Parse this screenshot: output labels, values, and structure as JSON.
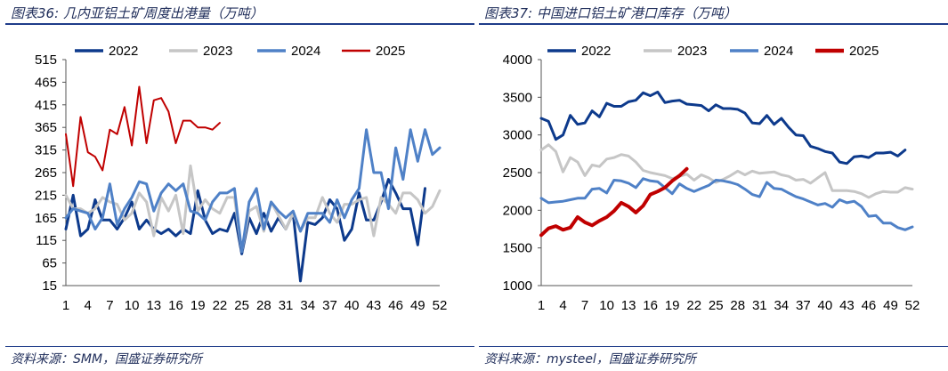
{
  "charts": [
    {
      "title": "图表36:  几内亚铝土矿周度出港量（万吨）",
      "source": "资料来源：SMM，国盛证券研究所"
    },
    {
      "title": "图表37:  中国进口铝土矿港口库存（万吨）",
      "source": "资料来源：mysteel，国盛证券研究所"
    }
  ],
  "chart_data": [
    {
      "type": "line",
      "title": "",
      "xlabel": "",
      "ylabel": "",
      "x": [
        1,
        2,
        3,
        4,
        5,
        6,
        7,
        8,
        9,
        10,
        11,
        12,
        13,
        14,
        15,
        16,
        17,
        18,
        19,
        20,
        21,
        22,
        23,
        24,
        25,
        26,
        27,
        28,
        29,
        30,
        31,
        32,
        33,
        34,
        35,
        36,
        37,
        38,
        39,
        40,
        41,
        42,
        43,
        44,
        45,
        46,
        47,
        48,
        49,
        50,
        51,
        52
      ],
      "xticks": [
        1,
        4,
        7,
        10,
        13,
        16,
        19,
        22,
        25,
        28,
        31,
        34,
        37,
        40,
        43,
        46,
        49,
        52
      ],
      "yticks": [
        15,
        65,
        115,
        165,
        215,
        265,
        315,
        365,
        415,
        465,
        515
      ],
      "ylim": [
        15,
        515
      ],
      "grid": false,
      "legend": "top",
      "series": [
        {
          "name": "2022",
          "color": "#0d3a8c",
          "width": 3,
          "values": [
            140,
            215,
            125,
            140,
            205,
            160,
            160,
            140,
            165,
            200,
            140,
            160,
            140,
            130,
            140,
            125,
            140,
            130,
            225,
            160,
            130,
            140,
            135,
            175,
            85,
            165,
            130,
            175,
            135,
            165,
            140,
            175,
            25,
            155,
            150,
            165,
            205,
            185,
            115,
            140,
            220,
            160,
            160,
            200,
            250,
            220,
            185,
            185,
            105,
            230,
            null,
            null
          ]
        },
        {
          "name": "2023",
          "color": "#c6c6c6",
          "width": 3,
          "values": [
            215,
            185,
            185,
            175,
            185,
            210,
            200,
            195,
            160,
            175,
            220,
            200,
            125,
            210,
            180,
            215,
            130,
            280,
            180,
            205,
            185,
            175,
            210,
            210,
            90,
            180,
            190,
            135,
            200,
            170,
            140,
            175,
            135,
            165,
            165,
            210,
            175,
            155,
            195,
            195,
            205,
            210,
            125,
            210,
            195,
            175,
            220,
            220,
            205,
            175,
            190,
            225
          ]
        },
        {
          "name": "2024",
          "color": "#4f81c7",
          "width": 3,
          "values": [
            165,
            185,
            180,
            175,
            140,
            165,
            240,
            150,
            185,
            210,
            245,
            240,
            180,
            220,
            240,
            225,
            240,
            180,
            175,
            160,
            200,
            220,
            220,
            230,
            90,
            200,
            230,
            140,
            200,
            180,
            165,
            180,
            135,
            175,
            175,
            175,
            155,
            205,
            165,
            205,
            230,
            360,
            265,
            265,
            185,
            320,
            250,
            360,
            290,
            360,
            305,
            320
          ]
        },
        {
          "name": "2025",
          "color": "#c00000",
          "width": 2,
          "values": [
            350,
            235,
            388,
            310,
            300,
            270,
            360,
            350,
            410,
            325,
            455,
            330,
            425,
            430,
            400,
            330,
            380,
            380,
            365,
            365,
            360,
            375,
            null,
            null,
            null,
            null,
            null,
            null,
            null,
            null,
            null,
            null,
            null,
            null,
            null,
            null,
            null,
            null,
            null,
            null,
            null,
            null,
            null,
            null,
            null,
            null,
            null,
            null,
            null,
            null,
            null,
            null
          ]
        }
      ]
    },
    {
      "type": "line",
      "title": "",
      "xlabel": "",
      "ylabel": "",
      "x": [
        1,
        2,
        3,
        4,
        5,
        6,
        7,
        8,
        9,
        10,
        11,
        12,
        13,
        14,
        15,
        16,
        17,
        18,
        19,
        20,
        21,
        22,
        23,
        24,
        25,
        26,
        27,
        28,
        29,
        30,
        31,
        32,
        33,
        34,
        35,
        36,
        37,
        38,
        39,
        40,
        41,
        42,
        43,
        44,
        45,
        46,
        47,
        48,
        49,
        50,
        51,
        52
      ],
      "xticks": [
        1,
        4,
        7,
        10,
        13,
        16,
        19,
        22,
        25,
        28,
        31,
        34,
        37,
        40,
        43,
        46,
        49,
        52
      ],
      "yticks": [
        1000,
        1500,
        2000,
        2500,
        3000,
        3500,
        4000
      ],
      "ylim": [
        1000,
        4000
      ],
      "grid": false,
      "legend": "top",
      "series": [
        {
          "name": "2022",
          "color": "#0d3a8c",
          "width": 3,
          "values": [
            3220,
            3180,
            2940,
            3000,
            3260,
            3140,
            3160,
            3320,
            3240,
            3420,
            3380,
            3380,
            3440,
            3460,
            3560,
            3520,
            3570,
            3430,
            3450,
            3460,
            3410,
            3400,
            3390,
            3320,
            3400,
            3350,
            3350,
            3340,
            3290,
            3160,
            3150,
            3260,
            3140,
            3220,
            3100,
            3000,
            2990,
            2850,
            2820,
            2780,
            2760,
            2640,
            2620,
            2710,
            2720,
            2700,
            2760,
            2760,
            2770,
            2720,
            2800,
            null
          ]
        },
        {
          "name": "2023",
          "color": "#c6c6c6",
          "width": 3,
          "values": [
            2800,
            2870,
            2780,
            2510,
            2700,
            2640,
            2460,
            2600,
            2580,
            2680,
            2700,
            2740,
            2720,
            2640,
            2530,
            2500,
            2480,
            2460,
            2420,
            2450,
            2480,
            2400,
            2470,
            2430,
            2370,
            2410,
            2460,
            2520,
            2470,
            2520,
            2490,
            2500,
            2510,
            2470,
            2450,
            2400,
            2410,
            2360,
            2430,
            2500,
            2260,
            2260,
            2260,
            2250,
            2220,
            2170,
            2220,
            2250,
            2240,
            2240,
            2300,
            2280
          ]
        },
        {
          "name": "2024",
          "color": "#4f81c7",
          "width": 3,
          "values": [
            2160,
            2100,
            2110,
            2120,
            2140,
            2160,
            2160,
            2280,
            2290,
            2230,
            2400,
            2390,
            2360,
            2300,
            2420,
            2390,
            2380,
            2300,
            2220,
            2350,
            2290,
            2250,
            2290,
            2330,
            2400,
            2390,
            2370,
            2340,
            2280,
            2210,
            2180,
            2370,
            2290,
            2280,
            2230,
            2180,
            2150,
            2110,
            2070,
            2090,
            2040,
            2140,
            2100,
            2120,
            2050,
            1920,
            1930,
            1830,
            1830,
            1770,
            1740,
            1780
          ]
        },
        {
          "name": "2025",
          "color": "#c00000",
          "width": 4,
          "values": [
            1670,
            1760,
            1790,
            1740,
            1770,
            1910,
            1840,
            1800,
            1860,
            1910,
            1990,
            2100,
            2050,
            1970,
            2060,
            2210,
            2250,
            2300,
            2390,
            2460,
            2550,
            null,
            null,
            null,
            null,
            null,
            null,
            null,
            null,
            null,
            null,
            null,
            null,
            null,
            null,
            null,
            null,
            null,
            null,
            null,
            null,
            null,
            null,
            null,
            null,
            null,
            null,
            null,
            null,
            null,
            null,
            null
          ]
        }
      ]
    }
  ]
}
